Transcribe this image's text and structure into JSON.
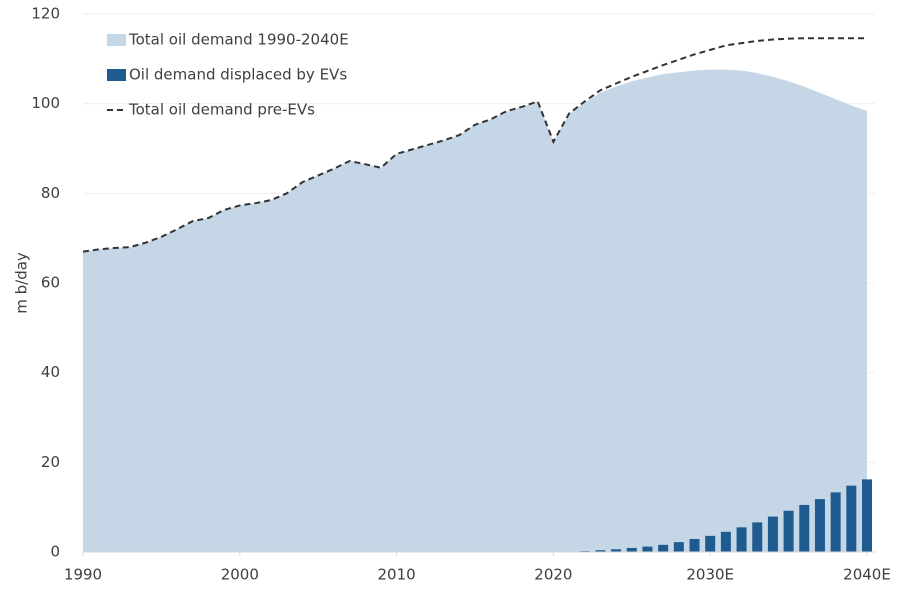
{
  "chart_data": {
    "type": "area-bar-line",
    "ylabel": "m b/day",
    "x": [
      1990,
      1991,
      1992,
      1993,
      1994,
      1995,
      1996,
      1997,
      1998,
      1999,
      2000,
      2001,
      2002,
      2003,
      2004,
      2005,
      2006,
      2007,
      2008,
      2009,
      2010,
      2011,
      2012,
      2013,
      2014,
      2015,
      2016,
      2017,
      2018,
      2019,
      2020,
      2021,
      2022,
      2023,
      2024,
      2025,
      2026,
      2027,
      2028,
      2029,
      2030,
      2031,
      2032,
      2033,
      2034,
      2035,
      2036,
      2037,
      2038,
      2039,
      2040
    ],
    "series": [
      {
        "name": "Total oil demand 1990-2040E",
        "kind": "area",
        "color": "#c5d6e6",
        "values": [
          67,
          67.5,
          67.8,
          68,
          69,
          70.3,
          72,
          73.8,
          74.5,
          76.3,
          77.3,
          77.8,
          78.5,
          80,
          82.5,
          84,
          85.5,
          87.2,
          86.5,
          85.7,
          88.8,
          89.8,
          90.8,
          91.8,
          93,
          95.3,
          96.5,
          98.3,
          99.3,
          100.5,
          91.5,
          97.7,
          100.2,
          102.5,
          103.8,
          105,
          105.8,
          106.6,
          107,
          107.4,
          107.6,
          107.6,
          107.4,
          106.8,
          106,
          105,
          103.8,
          102.4,
          101,
          99.6,
          98.4
        ]
      },
      {
        "name": "Oil demand displaced by EVs",
        "kind": "bar",
        "color": "#1f5b8e",
        "values": [
          null,
          null,
          null,
          null,
          null,
          null,
          null,
          null,
          null,
          null,
          null,
          null,
          null,
          null,
          null,
          null,
          null,
          null,
          null,
          null,
          0.1,
          0.1,
          0.1,
          0.1,
          0.1,
          0.1,
          0.1,
          0.1,
          0.1,
          0.1,
          0.1,
          0.1,
          0.2,
          0.4,
          0.6,
          0.9,
          1.2,
          1.6,
          2.2,
          2.9,
          3.6,
          4.5,
          5.5,
          6.6,
          7.9,
          9.2,
          10.5,
          11.8,
          13.3,
          14.8,
          16.2
        ]
      },
      {
        "name": "Total oil demand pre-EVs",
        "kind": "line",
        "color": "#333333",
        "values": [
          67,
          67.5,
          67.8,
          68,
          69,
          70.3,
          72,
          73.8,
          74.5,
          76.3,
          77.3,
          77.8,
          78.5,
          80,
          82.5,
          84,
          85.5,
          87.2,
          86.5,
          85.7,
          88.8,
          89.8,
          90.8,
          91.8,
          93,
          95.3,
          96.5,
          98.3,
          99.3,
          100.5,
          91.5,
          97.8,
          100.5,
          103,
          104.5,
          106,
          107.3,
          108.6,
          109.8,
          111,
          112,
          113,
          113.5,
          114,
          114.3,
          114.5,
          114.6,
          114.6,
          114.6,
          114.6,
          114.6
        ]
      }
    ],
    "xlim": [
      1990,
      2040
    ],
    "xticks": [
      1990,
      2000,
      2010,
      2020,
      {
        "value": 2030,
        "label": "2030E"
      },
      {
        "value": 2040,
        "label": "2040E"
      }
    ],
    "ylim": [
      0,
      120
    ],
    "yticks": [
      0,
      20,
      40,
      60,
      80,
      100,
      120
    ],
    "grid": true,
    "legend": "top-left"
  }
}
